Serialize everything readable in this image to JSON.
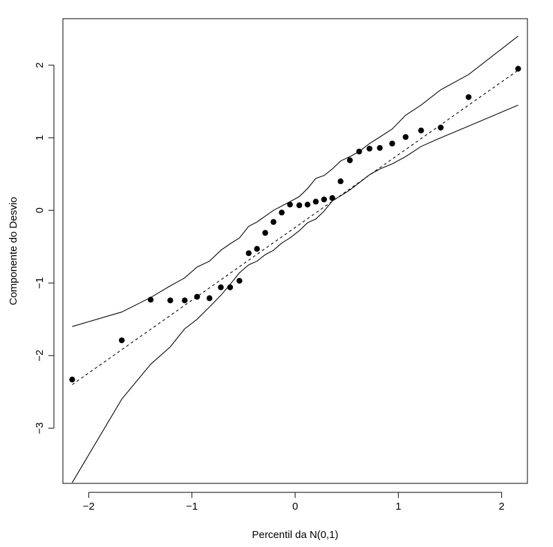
{
  "chart_data": {
    "type": "scatter",
    "title": "",
    "xlabel": "Percentil da N(0,1)",
    "ylabel": "Componente do Desvio",
    "xlim": [
      -2.25,
      2.25
    ],
    "ylim": [
      -3.76,
      2.64
    ],
    "x_ticks": [
      {
        "value": -2,
        "label": "−2"
      },
      {
        "value": -1,
        "label": "−1"
      },
      {
        "value": 0,
        "label": "0"
      },
      {
        "value": 1,
        "label": "1"
      },
      {
        "value": 2,
        "label": "2"
      }
    ],
    "y_ticks": [
      {
        "value": -3,
        "label": "−3"
      },
      {
        "value": -2,
        "label": "−2"
      },
      {
        "value": -1,
        "label": "−1"
      },
      {
        "value": 0,
        "label": "0"
      },
      {
        "value": 1,
        "label": "1"
      },
      {
        "value": 2,
        "label": "2"
      }
    ],
    "grid": false,
    "series": [
      {
        "name": "pontos",
        "kind": "points",
        "x": [
          -2.16,
          -1.68,
          -1.4,
          -1.21,
          -1.07,
          -0.95,
          -0.83,
          -0.72,
          -0.63,
          -0.54,
          -0.45,
          -0.37,
          -0.29,
          -0.21,
          -0.13,
          -0.05,
          0.04,
          0.12,
          0.2,
          0.28,
          0.36,
          0.44,
          0.53,
          0.62,
          0.72,
          0.82,
          0.94,
          1.07,
          1.22,
          1.41,
          1.68,
          2.16
        ],
        "y": [
          -2.33,
          -1.79,
          -1.23,
          -1.24,
          -1.24,
          -1.19,
          -1.21,
          -1.06,
          -1.06,
          -0.97,
          -0.59,
          -0.53,
          -0.31,
          -0.16,
          -0.03,
          0.08,
          0.07,
          0.08,
          0.12,
          0.15,
          0.17,
          0.4,
          0.69,
          0.81,
          0.85,
          0.86,
          0.92,
          1.01,
          1.1,
          1.14,
          1.56,
          1.95
        ]
      },
      {
        "name": "referencia",
        "kind": "dashed-line",
        "x": [
          -2.16,
          2.16
        ],
        "y": [
          -2.4,
          1.93
        ]
      },
      {
        "name": "envelope-superior",
        "kind": "solid-line",
        "x": [
          -2.16,
          -1.68,
          -1.4,
          -1.21,
          -1.07,
          -0.95,
          -0.83,
          -0.72,
          -0.63,
          -0.54,
          -0.45,
          -0.37,
          -0.29,
          -0.21,
          -0.13,
          -0.05,
          0.04,
          0.12,
          0.2,
          0.28,
          0.36,
          0.44,
          0.53,
          0.62,
          0.72,
          0.82,
          0.94,
          1.07,
          1.22,
          1.41,
          1.68,
          2.16
        ],
        "y": [
          -1.6,
          -1.4,
          -1.2,
          -1.04,
          -0.93,
          -0.78,
          -0.7,
          -0.55,
          -0.46,
          -0.38,
          -0.22,
          -0.16,
          -0.08,
          0.0,
          0.06,
          0.12,
          0.19,
          0.3,
          0.44,
          0.48,
          0.57,
          0.68,
          0.74,
          0.81,
          0.92,
          1.01,
          1.12,
          1.31,
          1.45,
          1.66,
          1.87,
          2.4
        ]
      },
      {
        "name": "envelope-inferior",
        "kind": "solid-line",
        "x": [
          -2.16,
          -1.68,
          -1.4,
          -1.21,
          -1.07,
          -0.95,
          -0.83,
          -0.72,
          -0.63,
          -0.54,
          -0.45,
          -0.37,
          -0.29,
          -0.21,
          -0.13,
          -0.05,
          0.04,
          0.12,
          0.2,
          0.28,
          0.36,
          0.44,
          0.53,
          0.62,
          0.72,
          0.82,
          0.94,
          1.07,
          1.22,
          1.41,
          1.68,
          2.16
        ],
        "y": [
          -3.75,
          -2.6,
          -2.12,
          -1.88,
          -1.63,
          -1.5,
          -1.33,
          -1.17,
          -1.02,
          -0.86,
          -0.75,
          -0.7,
          -0.61,
          -0.55,
          -0.45,
          -0.38,
          -0.28,
          -0.17,
          -0.12,
          -0.01,
          0.13,
          0.2,
          0.28,
          0.38,
          0.49,
          0.57,
          0.64,
          0.74,
          0.88,
          1.0,
          1.16,
          1.45
        ]
      }
    ]
  }
}
